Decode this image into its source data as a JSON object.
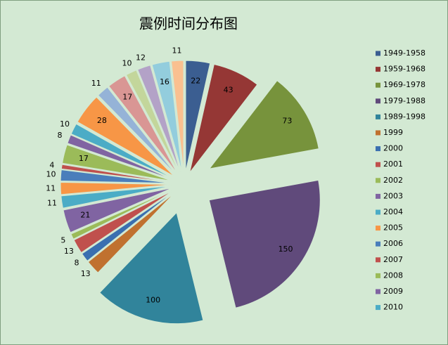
{
  "chart_data": {
    "type": "pie",
    "title": "震例时间分布图",
    "categories": [
      "1949-1958",
      "1959-1968",
      "1969-1978",
      "1979-1988",
      "1989-1998",
      "1999",
      "2000",
      "2001",
      "2002",
      "2003",
      "2004",
      "2005",
      "2006",
      "2007",
      "2008",
      "2009",
      "2010",
      null,
      null,
      null,
      null,
      null,
      null,
      null
    ],
    "values": [
      22,
      43,
      73,
      150,
      100,
      13,
      8,
      13,
      5,
      21,
      11,
      11,
      10,
      4,
      17,
      8,
      10,
      28,
      11,
      17,
      10,
      12,
      16,
      11
    ],
    "colors": [
      "#3b5e91",
      "#953735",
      "#77933c",
      "#604a7b",
      "#31849b",
      "#c0712f",
      "#3a6fb0",
      "#c0504d",
      "#9bbb59",
      "#8064a2",
      "#4bacc6",
      "#f79646",
      "#4a7ebb",
      "#c0504d",
      "#9bbb59",
      "#8064a2",
      "#4bacc6",
      "#f79646",
      "#95b3d7",
      "#d99694",
      "#c3d69b",
      "#b3a2c7",
      "#93cddd",
      "#fac090"
    ],
    "legend": "right"
  }
}
